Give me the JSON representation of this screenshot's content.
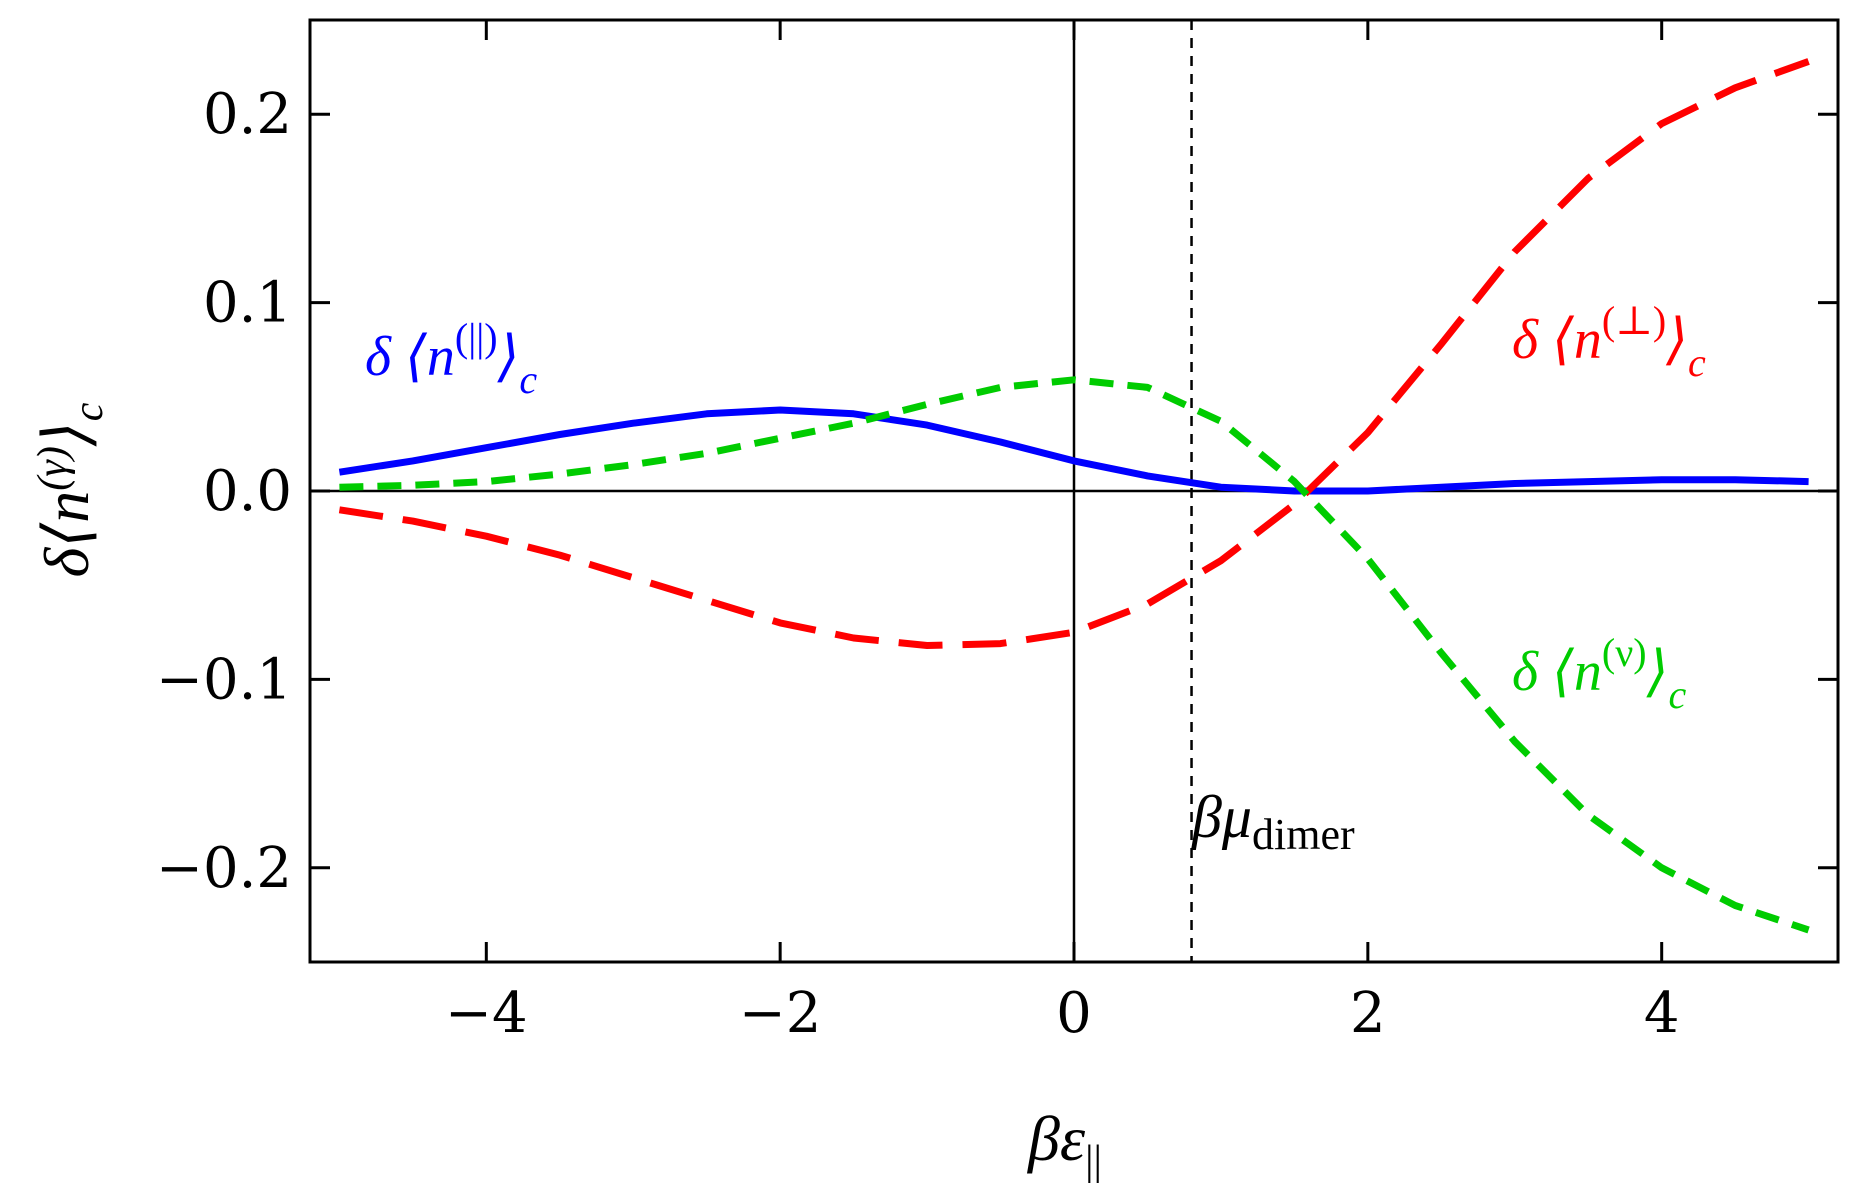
{
  "chart_data": {
    "type": "line",
    "xlim": [
      -5.2,
      5.2
    ],
    "ylim": [
      -0.25,
      0.25
    ],
    "grid": false,
    "x_ticks": [
      -4,
      -2,
      0,
      2,
      4
    ],
    "x_tick_labels": [
      "−4",
      "−2",
      "0",
      "2",
      "4"
    ],
    "y_ticks": [
      -0.2,
      -0.1,
      0.0,
      0.1,
      0.2
    ],
    "y_tick_labels": [
      "−0.2",
      "−0.1",
      "0.0",
      "0.1",
      "0.2"
    ],
    "xlabel": {
      "main": "βε",
      "sub": "||"
    },
    "ylabel": {
      "main": "δ⟨n",
      "sup": "(γ)",
      "close": "⟩",
      "sub": "c"
    },
    "reference_lines": {
      "vertical_x": 0,
      "horizontal_y": 0,
      "mu_dimer_x": 0.8
    },
    "annotation": {
      "main": "βμ",
      "sub": "dimer",
      "x": 0.8
    },
    "series": [
      {
        "name": "δ ⟨n(||)⟩c",
        "label_parts": {
          "pre": "δ ⟨n",
          "sup": "(||)",
          "close": "⟩",
          "sub": "c"
        },
        "color": "#0000ff",
        "style": "solid",
        "x": [
          -5,
          -4.5,
          -4,
          -3.5,
          -3,
          -2.5,
          -2,
          -1.5,
          -1,
          -0.5,
          0,
          0.5,
          1,
          1.5,
          2,
          2.5,
          3,
          3.5,
          4,
          4.5,
          5
        ],
        "y": [
          0.01,
          0.016,
          0.023,
          0.03,
          0.036,
          0.041,
          0.043,
          0.041,
          0.035,
          0.026,
          0.016,
          0.008,
          0.002,
          0.0,
          0.0,
          0.002,
          0.004,
          0.005,
          0.006,
          0.006,
          0.005
        ]
      },
      {
        "name": "δ ⟨n(⊥)⟩c",
        "label_parts": {
          "pre": "δ ⟨n",
          "sup": "(⊥)",
          "close": "⟩",
          "sub": "c"
        },
        "color": "#ff0000",
        "style": "longdash",
        "x": [
          -5,
          -4.5,
          -4,
          -3.5,
          -3,
          -2.5,
          -2,
          -1.5,
          -1,
          -0.5,
          0,
          0.5,
          1,
          1.5,
          2,
          2.5,
          3,
          3.5,
          4,
          4.5,
          5
        ],
        "y": [
          -0.01,
          -0.016,
          -0.024,
          -0.034,
          -0.046,
          -0.058,
          -0.07,
          -0.078,
          -0.082,
          -0.081,
          -0.075,
          -0.06,
          -0.037,
          -0.007,
          0.031,
          0.078,
          0.127,
          0.166,
          0.195,
          0.214,
          0.228
        ]
      },
      {
        "name": "δ ⟨n(ν)⟩c",
        "label_parts": {
          "pre": "δ ⟨n",
          "sup": "(ν)",
          "close": "⟩",
          "sub": "c"
        },
        "color": "#00cc00",
        "style": "dash",
        "x": [
          -5,
          -4.5,
          -4,
          -3.5,
          -3,
          -2.5,
          -2,
          -1.5,
          -1,
          -0.5,
          0,
          0.5,
          1,
          1.5,
          2,
          2.5,
          3,
          3.5,
          4,
          4.5,
          5
        ],
        "y": [
          0.002,
          0.003,
          0.005,
          0.009,
          0.014,
          0.02,
          0.028,
          0.036,
          0.046,
          0.055,
          0.059,
          0.055,
          0.037,
          0.005,
          -0.036,
          -0.086,
          -0.133,
          -0.172,
          -0.2,
          -0.22,
          -0.233
        ]
      }
    ]
  }
}
